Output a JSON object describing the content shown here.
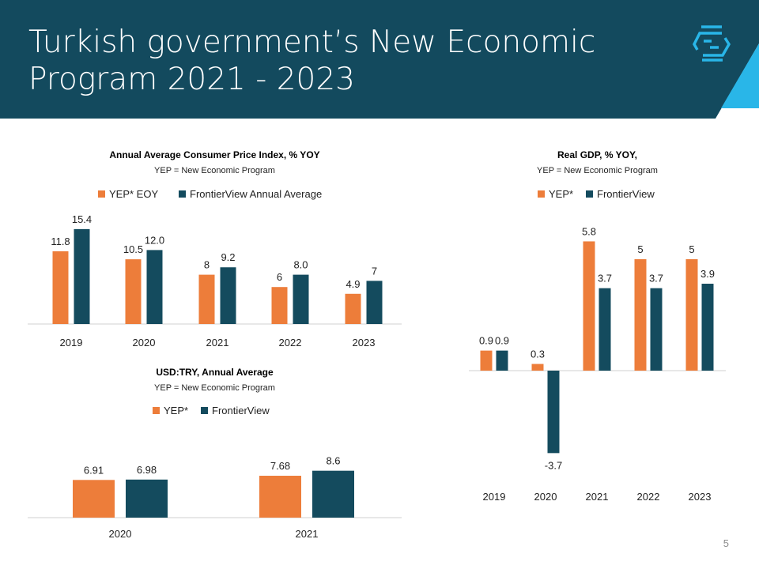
{
  "header": {
    "title": "Turkish government’s New Economic Program 2021 - 2023",
    "logo": "FrontierView"
  },
  "page_number": "5",
  "colors": {
    "header": "#134a5e",
    "accent": "#29b6e8",
    "yep": "#ed7d3a",
    "frontierview": "#144b5e"
  },
  "chart_data": [
    {
      "type": "bar",
      "title": "Annual Average Consumer Price Index, % YOY",
      "subtitle": "YEP = New Economic Program",
      "categories": [
        "2019",
        "2020",
        "2021",
        "2022",
        "2023"
      ],
      "series": [
        {
          "name": "YEP* EOY",
          "values": [
            11.8,
            10.5,
            8,
            6,
            4.9
          ],
          "labels": [
            "11.8",
            "10.5",
            "8",
            "6",
            "4.9"
          ]
        },
        {
          "name": "FrontierView Annual Average",
          "values": [
            15.4,
            12.0,
            9.2,
            8.0,
            7
          ],
          "labels": [
            "15.4",
            "12.0",
            "9.2",
            "8.0",
            "7"
          ]
        }
      ],
      "legend": "top"
    },
    {
      "type": "bar",
      "title": "USD:TRY, Annual Average",
      "subtitle": "YEP = New Economic Program",
      "categories": [
        "2020",
        "2021"
      ],
      "series": [
        {
          "name": "YEP*",
          "values": [
            6.91,
            7.68
          ],
          "labels": [
            "6.91",
            "7.68"
          ]
        },
        {
          "name": "FrontierView",
          "values": [
            6.98,
            8.6
          ],
          "labels": [
            "6.98",
            "8.6"
          ]
        }
      ],
      "legend": "top"
    },
    {
      "type": "bar",
      "title": "Real GDP, % YOY,",
      "subtitle": "YEP = New Economic Program",
      "categories": [
        "2019",
        "2020",
        "2021",
        "2022",
        "2023"
      ],
      "series": [
        {
          "name": "YEP*",
          "values": [
            0.9,
            0.3,
            5.8,
            5,
            5
          ],
          "labels": [
            "0.9",
            "0.3",
            "5.8",
            "5",
            "5"
          ]
        },
        {
          "name": "FrontierView",
          "values": [
            0.9,
            -3.7,
            3.7,
            3.7,
            3.9
          ],
          "labels": [
            "0.9",
            "-3.7",
            "3.7",
            "3.7",
            "3.9"
          ]
        }
      ],
      "legend": "top"
    }
  ]
}
